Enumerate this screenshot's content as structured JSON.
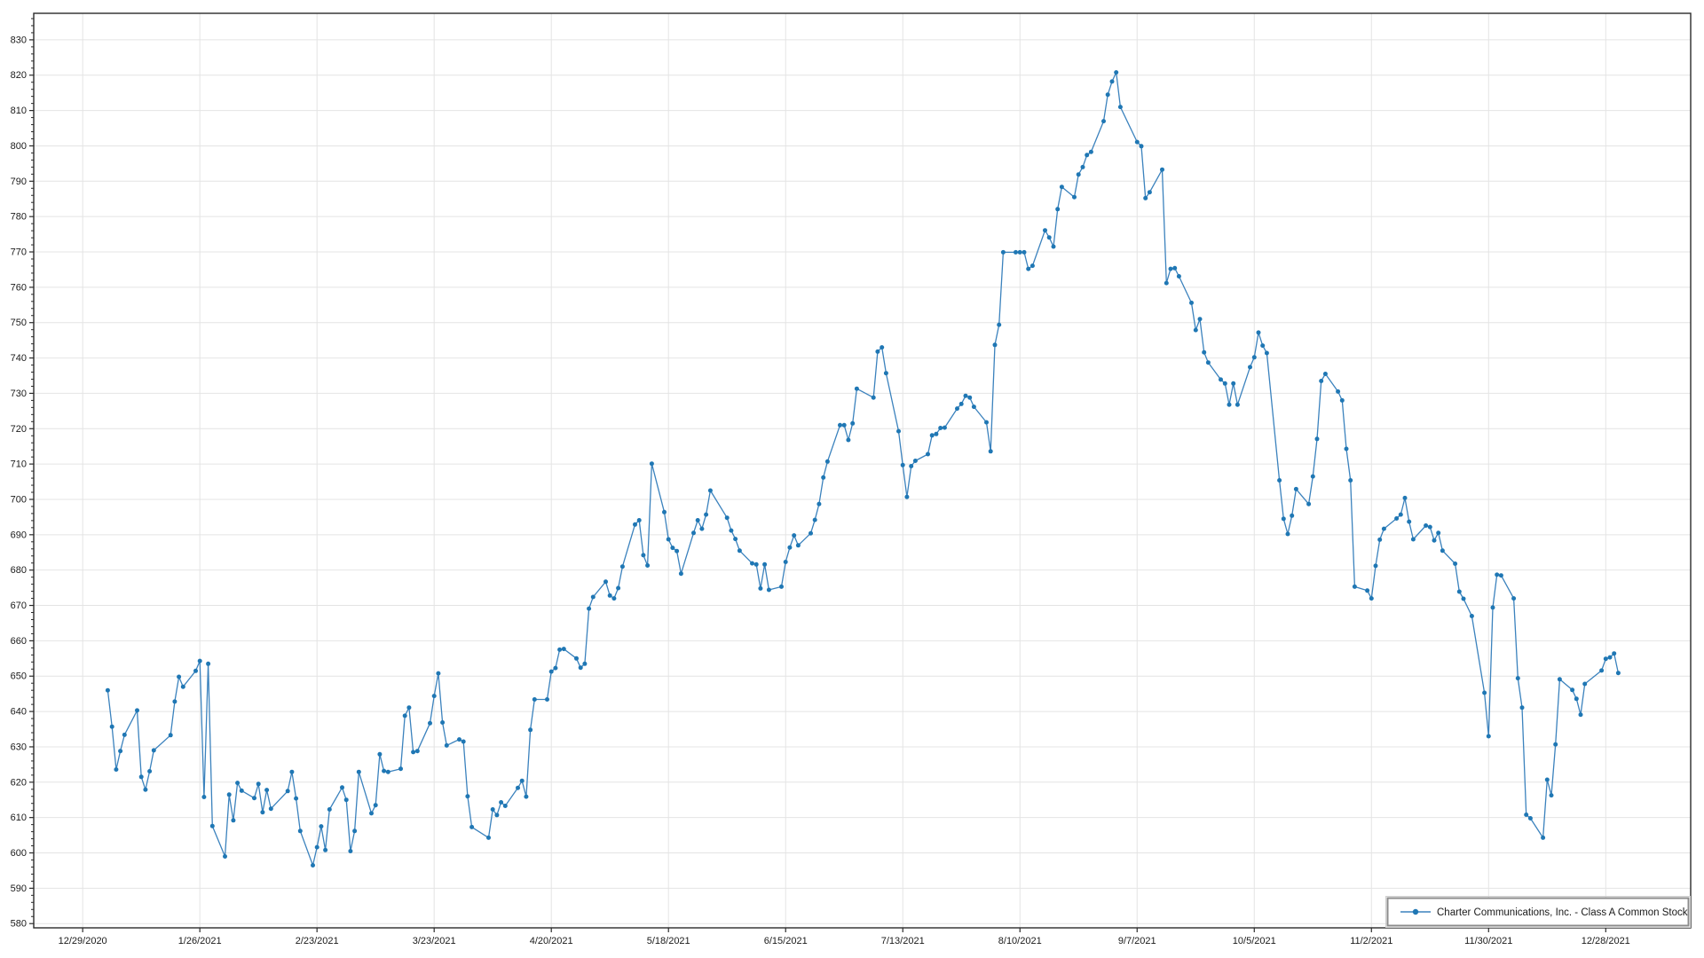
{
  "chart_data": {
    "type": "line",
    "title": "",
    "xlabel": "",
    "ylabel": "",
    "legend": {
      "label": "Charter Communications, Inc. - Class A Common Stock",
      "position": "bottom-right-inside",
      "marker": "line-with-dot"
    },
    "colors": {
      "line": "#3b82bd",
      "marker": "#1f77b4",
      "grid": "#e4e4e4",
      "axis": "#2b2b2b",
      "text": "#1a1a1a",
      "legend_border": "#8c8c8c",
      "background": "#ffffff"
    },
    "x_axis": {
      "tick_labels": [
        "12/29/2020",
        "1/26/2021",
        "2/23/2021",
        "3/23/2021",
        "4/20/2021",
        "5/18/2021",
        "6/15/2021",
        "7/13/2021",
        "8/10/2021",
        "9/7/2021",
        "10/5/2021",
        "11/2/2021",
        "11/30/2021",
        "12/28/2021"
      ],
      "tick_interval_days": 28,
      "domain_days_relative_to_first_tick": [
        -11.7,
        384.3
      ]
    },
    "y_axis": {
      "tick_labels": [
        "580",
        "590",
        "600",
        "610",
        "620",
        "630",
        "640",
        "650",
        "660",
        "670",
        "680",
        "690",
        "700",
        "710",
        "720",
        "730",
        "740",
        "750",
        "760",
        "770",
        "780",
        "790",
        "800",
        "810",
        "820",
        "830"
      ],
      "min": 580,
      "max": 830,
      "tick_step": 10,
      "minor_tick_step": 2,
      "domain": [
        578.8,
        837.5
      ]
    },
    "grid": true,
    "series": [
      {
        "name": "Charter Communications, Inc. - Class A Common Stock",
        "dates": [
          "1/4/2021",
          "1/5/2021",
          "1/6/2021",
          "1/7/2021",
          "1/8/2021",
          "1/11/2021",
          "1/12/2021",
          "1/13/2021",
          "1/14/2021",
          "1/15/2021",
          "1/19/2021",
          "1/20/2021",
          "1/21/2021",
          "1/22/2021",
          "1/25/2021",
          "1/26/2021",
          "1/27/2021",
          "1/28/2021",
          "1/29/2021",
          "2/1/2021",
          "2/2/2021",
          "2/3/2021",
          "2/4/2021",
          "2/5/2021",
          "2/8/2021",
          "2/9/2021",
          "2/10/2021",
          "2/11/2021",
          "2/12/2021",
          "2/16/2021",
          "2/17/2021",
          "2/18/2021",
          "2/19/2021",
          "2/22/2021",
          "2/23/2021",
          "2/24/2021",
          "2/25/2021",
          "2/26/2021",
          "3/1/2021",
          "3/2/2021",
          "3/3/2021",
          "3/4/2021",
          "3/5/2021",
          "3/8/2021",
          "3/9/2021",
          "3/10/2021",
          "3/11/2021",
          "3/12/2021",
          "3/15/2021",
          "3/16/2021",
          "3/17/2021",
          "3/18/2021",
          "3/19/2021",
          "3/22/2021",
          "3/23/2021",
          "3/24/2021",
          "3/25/2021",
          "3/26/2021",
          "3/29/2021",
          "3/30/2021",
          "3/31/2021",
          "4/1/2021",
          "4/5/2021",
          "4/6/2021",
          "4/7/2021",
          "4/8/2021",
          "4/9/2021",
          "4/12/2021",
          "4/13/2021",
          "4/14/2021",
          "4/15/2021",
          "4/16/2021",
          "4/19/2021",
          "4/20/2021",
          "4/21/2021",
          "4/22/2021",
          "4/23/2021",
          "4/26/2021",
          "4/27/2021",
          "4/28/2021",
          "4/29/2021",
          "4/30/2021",
          "5/3/2021",
          "5/4/2021",
          "5/5/2021",
          "5/6/2021",
          "5/7/2021",
          "5/10/2021",
          "5/11/2021",
          "5/12/2021",
          "5/13/2021",
          "5/14/2021",
          "5/17/2021",
          "5/18/2021",
          "5/19/2021",
          "5/20/2021",
          "5/21/2021",
          "5/24/2021",
          "5/25/2021",
          "5/26/2021",
          "5/27/2021",
          "5/28/2021",
          "6/1/2021",
          "6/2/2021",
          "6/3/2021",
          "6/4/2021",
          "6/7/2021",
          "6/8/2021",
          "6/9/2021",
          "6/10/2021",
          "6/11/2021",
          "6/14/2021",
          "6/15/2021",
          "6/16/2021",
          "6/17/2021",
          "6/18/2021",
          "6/21/2021",
          "6/22/2021",
          "6/23/2021",
          "6/24/2021",
          "6/25/2021",
          "6/28/2021",
          "6/29/2021",
          "6/30/2021",
          "7/1/2021",
          "7/2/2021",
          "7/6/2021",
          "7/7/2021",
          "7/8/2021",
          "7/9/2021",
          "7/12/2021",
          "7/13/2021",
          "7/14/2021",
          "7/15/2021",
          "7/16/2021",
          "7/19/2021",
          "7/20/2021",
          "7/21/2021",
          "7/22/2021",
          "7/23/2021",
          "7/26/2021",
          "7/27/2021",
          "7/28/2021",
          "7/29/2021",
          "7/30/2021",
          "8/2/2021",
          "8/3/2021",
          "8/4/2021",
          "8/5/2021",
          "8/6/2021",
          "8/9/2021",
          "8/10/2021",
          "8/11/2021",
          "8/12/2021",
          "8/13/2021",
          "8/16/2021",
          "8/17/2021",
          "8/18/2021",
          "8/19/2021",
          "8/20/2021",
          "8/23/2021",
          "8/24/2021",
          "8/25/2021",
          "8/26/2021",
          "8/27/2021",
          "8/30/2021",
          "8/31/2021",
          "9/1/2021",
          "9/2/2021",
          "9/3/2021",
          "9/7/2021",
          "9/8/2021",
          "9/9/2021",
          "9/10/2021",
          "9/13/2021",
          "9/14/2021",
          "9/15/2021",
          "9/16/2021",
          "9/17/2021",
          "9/20/2021",
          "9/21/2021",
          "9/22/2021",
          "9/23/2021",
          "9/24/2021",
          "9/27/2021",
          "9/28/2021",
          "9/29/2021",
          "9/30/2021",
          "10/1/2021",
          "10/4/2021",
          "10/5/2021",
          "10/6/2021",
          "10/7/2021",
          "10/8/2021",
          "10/11/2021",
          "10/12/2021",
          "10/13/2021",
          "10/14/2021",
          "10/15/2021",
          "10/18/2021",
          "10/19/2021",
          "10/20/2021",
          "10/21/2021",
          "10/22/2021",
          "10/25/2021",
          "10/26/2021",
          "10/27/2021",
          "10/28/2021",
          "10/29/2021",
          "11/1/2021",
          "11/2/2021",
          "11/3/2021",
          "11/4/2021",
          "11/5/2021",
          "11/8/2021",
          "11/9/2021",
          "11/10/2021",
          "11/11/2021",
          "11/12/2021",
          "11/15/2021",
          "11/16/2021",
          "11/17/2021",
          "11/18/2021",
          "11/19/2021",
          "11/22/2021",
          "11/23/2021",
          "11/24/2021",
          "11/26/2021",
          "11/29/2021",
          "11/30/2021",
          "12/1/2021",
          "12/2/2021",
          "12/3/2021",
          "12/6/2021",
          "12/7/2021",
          "12/8/2021",
          "12/9/2021",
          "12/10/2021",
          "12/13/2021",
          "12/14/2021",
          "12/15/2021",
          "12/16/2021",
          "12/17/2021",
          "12/20/2021",
          "12/21/2021",
          "12/22/2021",
          "12/23/2021",
          "12/27/2021",
          "12/28/2021",
          "12/29/2021",
          "12/30/2021",
          "12/31/2021"
        ],
        "values": [
          646.0,
          635.7,
          623.6,
          628.8,
          633.4,
          640.3,
          621.5,
          617.9,
          623.1,
          629.0,
          633.3,
          642.8,
          649.8,
          647.0,
          651.5,
          654.3,
          615.8,
          653.5,
          607.6,
          599.0,
          616.5,
          609.2,
          619.8,
          617.6,
          615.5,
          619.5,
          611.5,
          617.8,
          612.5,
          617.5,
          622.9,
          615.4,
          606.2,
          596.5,
          601.6,
          607.5,
          600.8,
          612.3,
          618.5,
          615.0,
          600.5,
          606.2,
          622.9,
          611.2,
          613.5,
          627.9,
          623.2,
          622.9,
          623.8,
          638.8,
          641.1,
          628.5,
          628.8,
          636.7,
          644.4,
          650.8,
          636.9,
          630.4,
          632.1,
          631.5,
          616.0,
          607.3,
          604.3,
          612.3,
          610.7,
          614.3,
          613.3,
          618.4,
          620.4,
          615.9,
          634.8,
          643.4,
          643.4,
          651.3,
          652.3,
          657.5,
          657.7,
          655.0,
          652.4,
          653.5,
          669.1,
          672.4,
          676.7,
          672.8,
          672.0,
          674.9,
          681.0,
          692.9,
          694.1,
          684.2,
          681.3,
          710.1,
          696.4,
          688.7,
          686.3,
          685.4,
          679.0,
          690.5,
          694.1,
          691.7,
          695.7,
          702.5,
          694.8,
          691.2,
          688.8,
          685.5,
          681.9,
          681.6,
          674.8,
          681.6,
          674.4,
          675.3,
          682.3,
          686.4,
          689.8,
          687.0,
          690.4,
          694.2,
          698.7,
          706.2,
          710.7,
          721.0,
          721.0,
          716.8,
          721.5,
          731.3,
          728.8,
          741.8,
          743.0,
          735.7,
          719.3,
          709.7,
          700.7,
          709.4,
          710.9,
          712.8,
          718.1,
          718.5,
          720.2,
          720.3,
          725.7,
          727.0,
          729.3,
          728.8,
          726.2,
          721.8,
          713.6,
          743.7,
          749.4,
          769.9,
          769.9,
          769.9,
          769.9,
          765.2,
          766.1,
          776.1,
          774.1,
          771.5,
          782.1,
          788.4,
          785.5,
          791.9,
          794.0,
          797.4,
          798.3,
          807.0,
          814.5,
          818.2,
          820.8,
          811.0,
          801.1,
          799.9,
          785.2,
          786.9,
          793.3,
          761.2,
          765.2,
          765.4,
          763.1,
          755.6,
          747.9,
          751.0,
          741.6,
          738.7,
          733.9,
          732.8,
          726.8,
          732.8,
          726.8,
          737.4,
          740.2,
          747.2,
          743.5,
          741.4,
          705.4,
          694.5,
          690.2,
          695.4,
          702.9,
          698.7,
          706.5,
          717.1,
          733.5,
          735.5,
          730.5,
          728.0,
          714.3,
          705.4,
          675.3,
          674.2,
          672.0,
          681.2,
          688.6,
          691.7,
          694.6,
          695.7,
          700.4,
          693.7,
          688.7,
          692.6,
          692.2,
          688.4,
          690.5,
          685.5,
          681.8,
          673.9,
          671.9,
          667.0,
          645.3,
          633.0,
          669.4,
          678.7,
          678.5,
          672.0,
          649.4,
          641.1,
          610.8,
          609.8,
          604.3,
          620.7,
          616.3,
          630.7,
          649.1,
          646.1,
          643.6,
          639.1,
          647.8,
          651.6,
          654.9,
          655.3,
          656.4,
          650.9
        ]
      }
    ]
  }
}
